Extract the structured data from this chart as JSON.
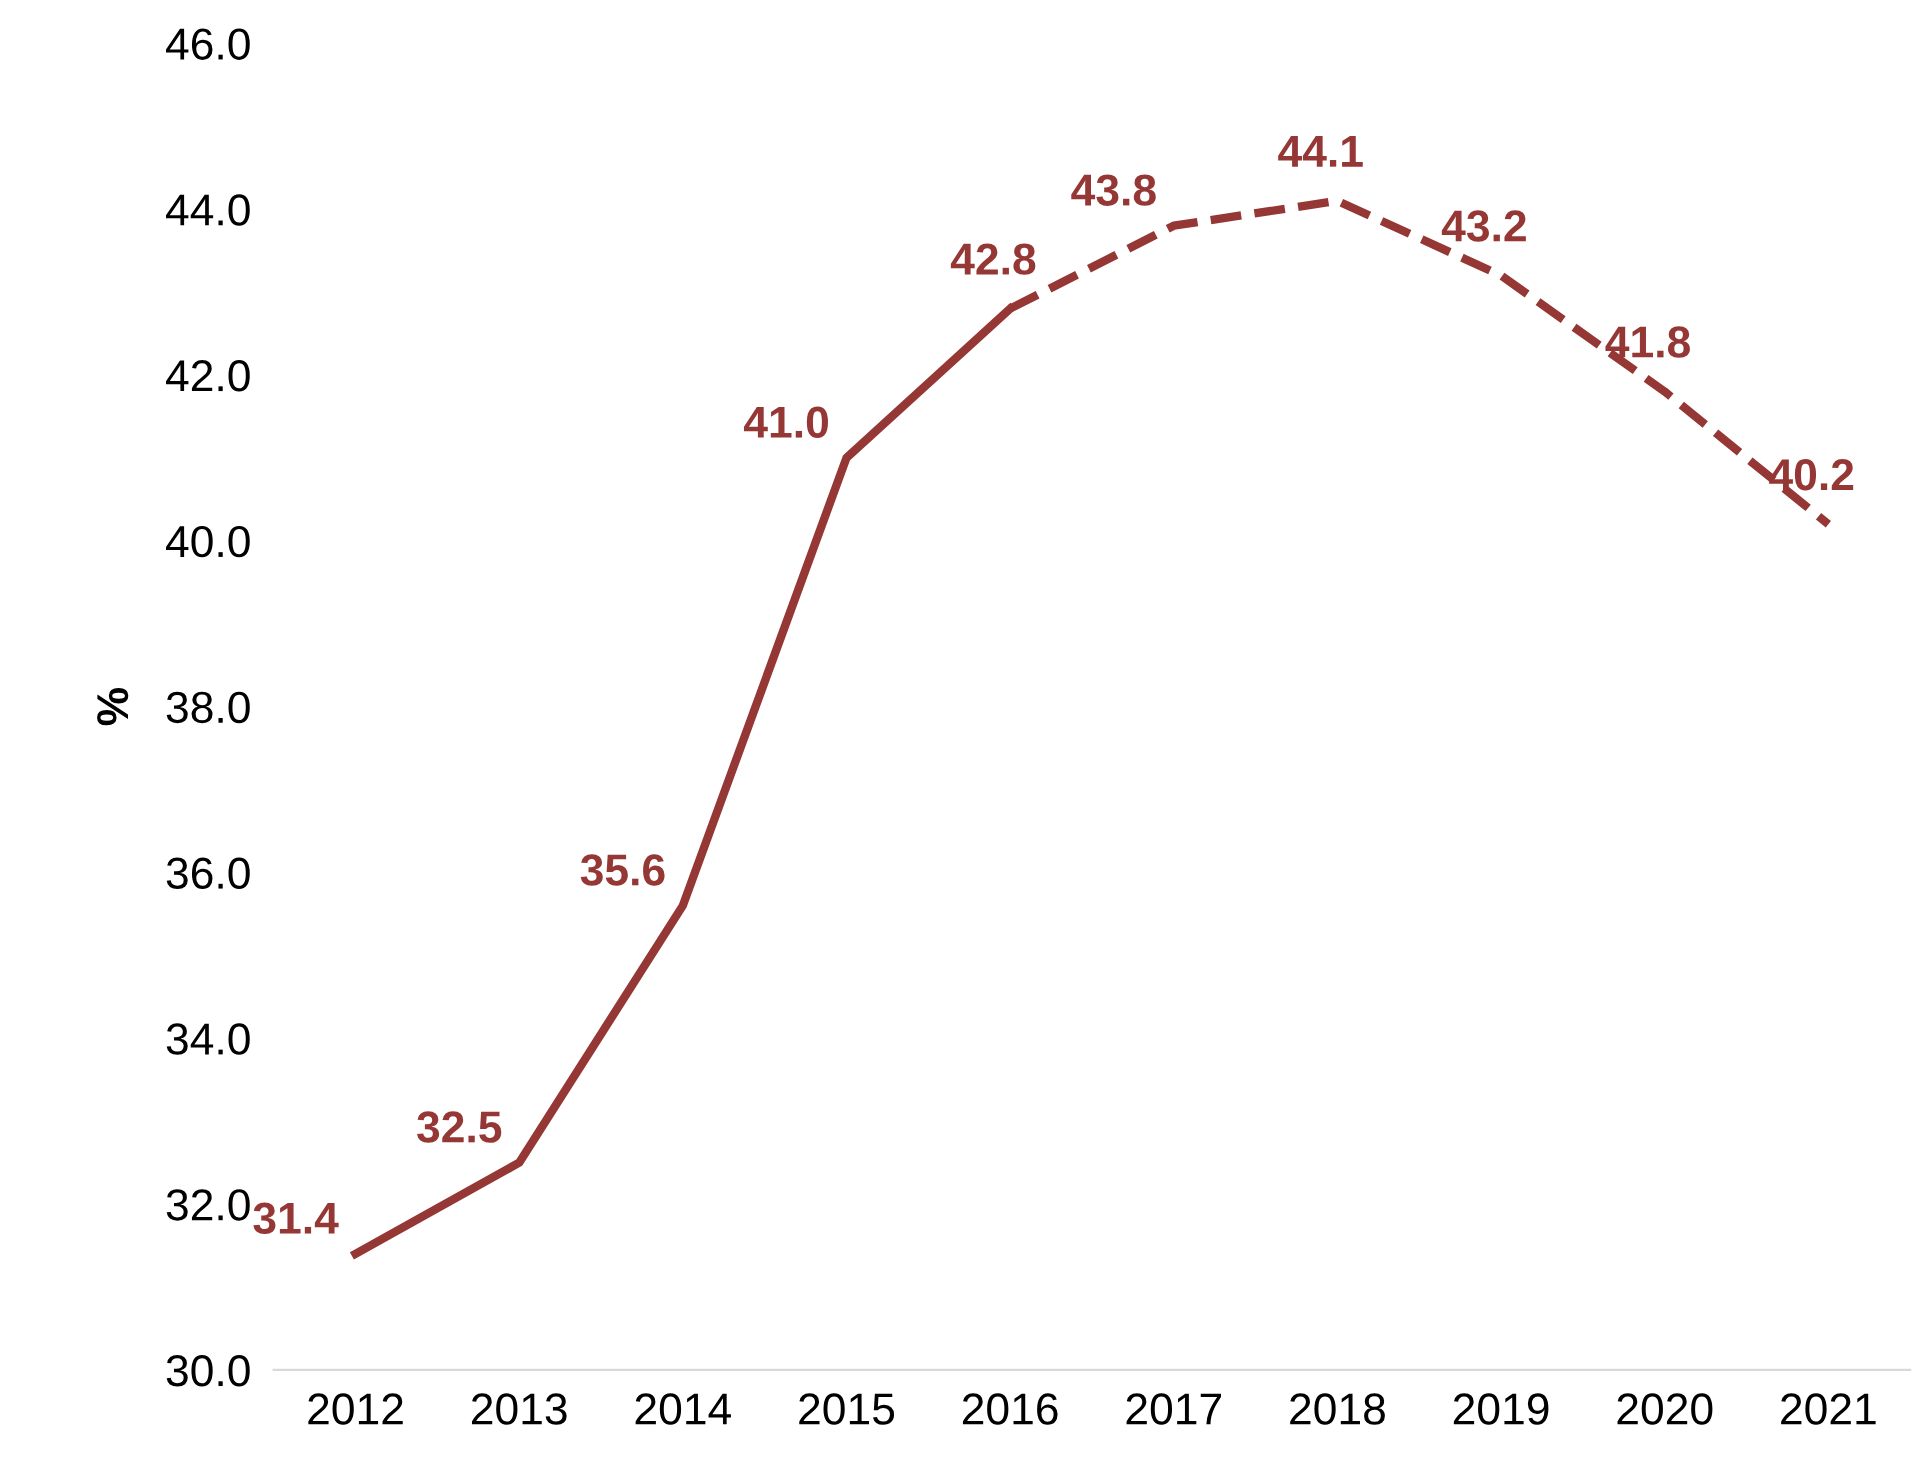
{
  "chart_data": {
    "type": "line",
    "ylabel": "%",
    "categories": [
      "2012",
      "2013",
      "2014",
      "2015",
      "2016",
      "2017",
      "2018",
      "2019",
      "2020",
      "2021"
    ],
    "series": [
      {
        "color": "#953735",
        "line_style": "solid",
        "values": [
          31.4,
          32.5,
          35.6,
          41.0,
          42.8,
          null,
          null,
          null,
          null,
          null
        ],
        "value_labels": [
          "31.4",
          "32.5",
          "35.6",
          "41.0",
          "42.8",
          null,
          null,
          null,
          null,
          null
        ]
      },
      {
        "color": "#953735",
        "line_style": "dashed",
        "values": [
          null,
          null,
          null,
          null,
          42.8,
          43.8,
          44.1,
          43.2,
          41.8,
          40.2
        ],
        "value_labels": [
          null,
          null,
          null,
          null,
          null,
          "43.8",
          "44.1",
          "43.2",
          "41.8",
          "40.2"
        ]
      }
    ],
    "ylim": [
      30.0,
      46.0
    ],
    "yticks": [
      {
        "value": 30,
        "label": "30.0"
      },
      {
        "value": 32,
        "label": "32.0"
      },
      {
        "value": 34,
        "label": "34.0"
      },
      {
        "value": 36,
        "label": "36.0"
      },
      {
        "value": 38,
        "label": "38.0"
      },
      {
        "value": 40,
        "label": "40.0"
      },
      {
        "value": 42,
        "label": "42.0"
      },
      {
        "value": 44,
        "label": "44.0"
      },
      {
        "value": 46,
        "label": "46.0"
      }
    ],
    "grid": false,
    "legend": false,
    "marker": "none"
  }
}
